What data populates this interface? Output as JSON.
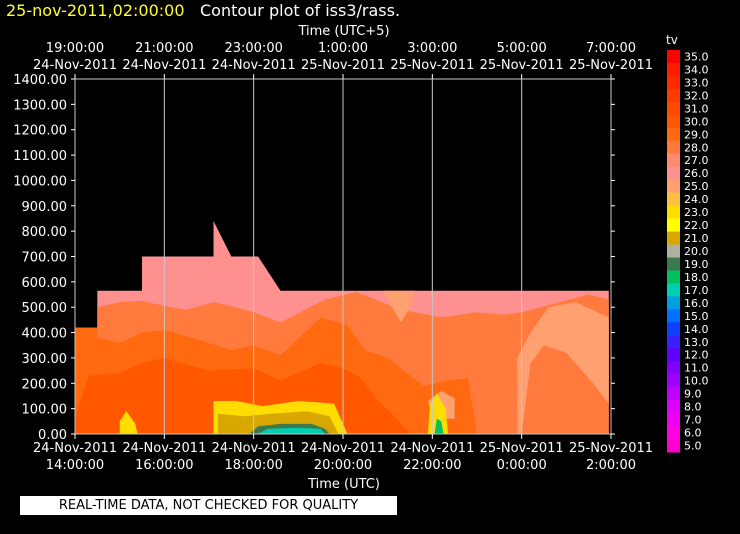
{
  "header": {
    "timestamp": "25-nov-2011,02:00:00",
    "title": "Contour plot of iss3/rass."
  },
  "quality_note": "REAL-TIME DATA, NOT CHECKED FOR QUALITY",
  "colors": {
    "background": "#000000",
    "timestamp": "#ffff33",
    "text": "#ffffff",
    "grid": "#c8c8c8"
  },
  "chart_data": {
    "type": "heatmap",
    "variable": "tv",
    "top_axis": {
      "label": "Time (UTC+5)",
      "ticks": [
        {
          "time": "19:00:00",
          "date": "24-Nov-2011"
        },
        {
          "time": "21:00:00",
          "date": "24-Nov-2011"
        },
        {
          "time": "23:00:00",
          "date": "24-Nov-2011"
        },
        {
          "time": "1:00:00",
          "date": "25-Nov-2011"
        },
        {
          "time": "3:00:00",
          "date": "25-Nov-2011"
        },
        {
          "time": "5:00:00",
          "date": "25-Nov-2011"
        },
        {
          "time": "7:00:00",
          "date": "25-Nov-2011"
        }
      ]
    },
    "bottom_axis": {
      "label": "Time (UTC)",
      "ticks": [
        {
          "time": "14:00:00",
          "date": "24-Nov-2011"
        },
        {
          "time": "16:00:00",
          "date": "24-Nov-2011"
        },
        {
          "time": "18:00:00",
          "date": "24-Nov-2011"
        },
        {
          "time": "20:00:00",
          "date": "24-Nov-2011"
        },
        {
          "time": "22:00:00",
          "date": "24-Nov-2011"
        },
        {
          "time": "0:00:00",
          "date": "25-Nov-2011"
        },
        {
          "time": "2:00:00",
          "date": "25-Nov-2011"
        }
      ]
    },
    "xlim_hours_utc": [
      14,
      26
    ],
    "y_axis": {
      "ylim": [
        0,
        1400
      ],
      "ticks": [
        "0.00",
        "100.00",
        "200.00",
        "300.00",
        "400.00",
        "500.00",
        "600.00",
        "700.00",
        "800.00",
        "900.00",
        "1000.00",
        "1100.00",
        "1200.00",
        "1300.00",
        "1400.00"
      ]
    },
    "grid": true,
    "legend": {
      "placement": "right",
      "title": "tv",
      "levels": [
        {
          "label": "35.0",
          "color": "#ff0000"
        },
        {
          "label": "34.0",
          "color": "#ff1a00"
        },
        {
          "label": "33.0",
          "color": "#ff2a00"
        },
        {
          "label": "32.0",
          "color": "#ff3b00"
        },
        {
          "label": "31.0",
          "color": "#ff4a00"
        },
        {
          "label": "30.0",
          "color": "#ff5800"
        },
        {
          "label": "29.0",
          "color": "#ff6a10"
        },
        {
          "label": "28.0",
          "color": "#ff7a3c"
        },
        {
          "label": "27.0",
          "color": "#ff8a70"
        },
        {
          "label": "26.0",
          "color": "#ff9090"
        },
        {
          "label": "25.0",
          "color": "#ffa070"
        },
        {
          "label": "24.0",
          "color": "#ffc040"
        },
        {
          "label": "23.0",
          "color": "#ffdd00"
        },
        {
          "label": "22.0",
          "color": "#ffff00"
        },
        {
          "label": "21.0",
          "color": "#d8a800"
        },
        {
          "label": "20.0",
          "color": "#b0b0a0"
        },
        {
          "label": "19.0",
          "color": "#3c7850"
        },
        {
          "label": "18.0",
          "color": "#00c060"
        },
        {
          "label": "17.0",
          "color": "#00d0b0"
        },
        {
          "label": "16.0",
          "color": "#00a0e0"
        },
        {
          "label": "15.0",
          "color": "#0070ff"
        },
        {
          "label": "14.0",
          "color": "#1040ff"
        },
        {
          "label": "13.0",
          "color": "#3a20ff"
        },
        {
          "label": "12.0",
          "color": "#6000ff"
        },
        {
          "label": "11.0",
          "color": "#8000ff"
        },
        {
          "label": "10.0",
          "color": "#a000ff"
        },
        {
          "label": "9.0",
          "color": "#c000ff"
        },
        {
          "label": "8.0",
          "color": "#dd00ff"
        },
        {
          "label": "7.0",
          "color": "#f000f0"
        },
        {
          "label": "6.0",
          "color": "#ff00e0"
        },
        {
          "label": "5.0",
          "color": "#ff00d0"
        }
      ]
    },
    "regions": [
      {
        "name": "outer-envelope",
        "color": "#ff9090",
        "points": [
          [
            14,
            0
          ],
          [
            14,
            420
          ],
          [
            14.5,
            420
          ],
          [
            14.5,
            565
          ],
          [
            15.5,
            565
          ],
          [
            15.5,
            700
          ],
          [
            17.1,
            700
          ],
          [
            17.1,
            840
          ],
          [
            17.5,
            700
          ],
          [
            18.1,
            700
          ],
          [
            18.6,
            565
          ],
          [
            25.95,
            565
          ],
          [
            25.95,
            0
          ]
        ]
      },
      {
        "name": "warm-band-28",
        "color": "#ff7a3c",
        "points": [
          [
            14,
            0
          ],
          [
            14,
            420
          ],
          [
            14.5,
            420
          ],
          [
            14.5,
            500
          ],
          [
            15,
            520
          ],
          [
            15.5,
            525
          ],
          [
            16,
            505
          ],
          [
            16.5,
            490
          ],
          [
            17.1,
            520
          ],
          [
            17.6,
            500
          ],
          [
            18,
            480
          ],
          [
            18.6,
            440
          ],
          [
            19.6,
            530
          ],
          [
            20.3,
            560
          ],
          [
            21.3,
            490
          ],
          [
            22.2,
            460
          ],
          [
            23,
            480
          ],
          [
            23.6,
            470
          ],
          [
            24,
            480
          ],
          [
            25.5,
            550
          ],
          [
            25.95,
            530
          ],
          [
            25.95,
            0
          ]
        ]
      },
      {
        "name": "warm-band-29",
        "color": "#ff6a10",
        "points": [
          [
            14,
            0
          ],
          [
            14,
            420
          ],
          [
            14.5,
            420
          ],
          [
            14.5,
            380
          ],
          [
            15,
            360
          ],
          [
            15.5,
            400
          ],
          [
            16,
            410
          ],
          [
            16.8,
            370
          ],
          [
            17.5,
            330
          ],
          [
            18,
            350
          ],
          [
            18.6,
            310
          ],
          [
            19.5,
            460
          ],
          [
            20.1,
            430
          ],
          [
            20.5,
            330
          ],
          [
            21,
            300
          ],
          [
            21.8,
            190
          ],
          [
            22.3,
            210
          ],
          [
            22.8,
            220
          ],
          [
            23,
            0
          ]
        ]
      },
      {
        "name": "warm-band-30",
        "color": "#ff5800",
        "points": [
          [
            14,
            0
          ],
          [
            14,
            60
          ],
          [
            14.3,
            230
          ],
          [
            15,
            240
          ],
          [
            15.5,
            280
          ],
          [
            16,
            300
          ],
          [
            17,
            250
          ],
          [
            18,
            260
          ],
          [
            18.6,
            210
          ],
          [
            19.5,
            280
          ],
          [
            20,
            260
          ],
          [
            20.4,
            220
          ],
          [
            20.8,
            130
          ],
          [
            21.2,
            60
          ],
          [
            21.5,
            0
          ]
        ]
      },
      {
        "name": "cool-plume-25",
        "color": "#ffa070",
        "points": [
          [
            20.9,
            565
          ],
          [
            21.1,
            500
          ],
          [
            21.3,
            440
          ],
          [
            21.5,
            500
          ],
          [
            21.6,
            565
          ]
        ]
      },
      {
        "name": "cool-plume-right",
        "color": "#ffa070",
        "points": [
          [
            23.9,
            0
          ],
          [
            23.9,
            300
          ],
          [
            24.2,
            400
          ],
          [
            24.6,
            500
          ],
          [
            25.2,
            520
          ],
          [
            25.7,
            480
          ],
          [
            25.95,
            460
          ],
          [
            25.95,
            120
          ],
          [
            25.6,
            200
          ],
          [
            25,
            320
          ],
          [
            24.5,
            350
          ],
          [
            24.2,
            280
          ],
          [
            24,
            0
          ]
        ]
      },
      {
        "name": "cool-plume-small",
        "color": "#ffa070",
        "points": [
          [
            21.9,
            130
          ],
          [
            22.2,
            170
          ],
          [
            22.5,
            140
          ],
          [
            22.5,
            60
          ],
          [
            22,
            60
          ]
        ]
      },
      {
        "name": "stable-layer-outer",
        "color": "#ffdd00",
        "points": [
          [
            17.1,
            0
          ],
          [
            17.1,
            130
          ],
          [
            17.6,
            130
          ],
          [
            18.2,
            110
          ],
          [
            19,
            130
          ],
          [
            19.8,
            120
          ],
          [
            20.1,
            0
          ]
        ]
      },
      {
        "name": "stable-layer-mid",
        "color": "#d8a800",
        "points": [
          [
            17.2,
            0
          ],
          [
            17.2,
            80
          ],
          [
            17.8,
            70
          ],
          [
            18.4,
            80
          ],
          [
            19.2,
            90
          ],
          [
            19.7,
            70
          ],
          [
            19.9,
            0
          ]
        ]
      },
      {
        "name": "stable-layer-inner",
        "color": "#3c7850",
        "points": [
          [
            17.9,
            0
          ],
          [
            18.1,
            30
          ],
          [
            18.6,
            40
          ],
          [
            19.3,
            40
          ],
          [
            19.6,
            20
          ],
          [
            19.7,
            0
          ]
        ]
      },
      {
        "name": "stable-layer-core",
        "color": "#00d0b0",
        "points": [
          [
            18.1,
            0
          ],
          [
            18.3,
            20
          ],
          [
            19,
            25
          ],
          [
            19.5,
            20
          ],
          [
            19.6,
            0
          ]
        ]
      },
      {
        "name": "spike-outer",
        "color": "#ffdd00",
        "points": [
          [
            21.9,
            0
          ],
          [
            21.95,
            120
          ],
          [
            22.1,
            160
          ],
          [
            22.3,
            100
          ],
          [
            22.35,
            0
          ]
        ]
      },
      {
        "name": "spike-inner",
        "color": "#00c060",
        "points": [
          [
            22.05,
            0
          ],
          [
            22.1,
            60
          ],
          [
            22.2,
            50
          ],
          [
            22.25,
            0
          ]
        ]
      },
      {
        "name": "left-edge-cold",
        "color": "#ffdd00",
        "points": [
          [
            15,
            0
          ],
          [
            15,
            50
          ],
          [
            15.15,
            90
          ],
          [
            15.35,
            40
          ],
          [
            15.4,
            0
          ]
        ]
      }
    ]
  }
}
